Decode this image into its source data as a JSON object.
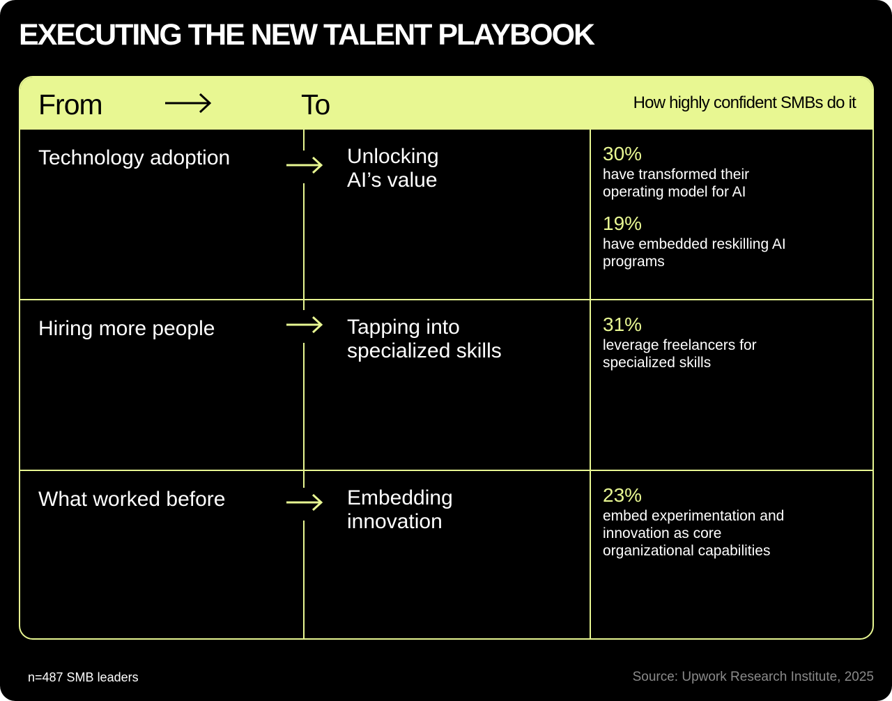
{
  "title": "EXECUTING THE NEW TALENT PLAYBOOK",
  "colors": {
    "accent": "#e8f792",
    "background": "#000000",
    "source_text": "#8a8a8a"
  },
  "header": {
    "from": "From",
    "to": "To",
    "right": "How highly confident SMBs do it",
    "arrow_icon": "arrow-right-icon"
  },
  "rows": [
    {
      "from": "Technology adoption",
      "to_line1": "Unlocking",
      "to_line2": "AI’s value",
      "stats": [
        {
          "pct": "30%",
          "desc": "have transformed their operating model for AI"
        },
        {
          "pct": "19%",
          "desc": "have embedded reskilling AI programs"
        }
      ]
    },
    {
      "from": "Hiring more people",
      "to_line1": "Tapping into",
      "to_line2": "specialized skills",
      "stats": [
        {
          "pct": "31%",
          "desc": "leverage freelancers for specialized skills"
        }
      ]
    },
    {
      "from": "What worked before",
      "to_line1": "Embedding",
      "to_line2": "innovation",
      "stats": [
        {
          "pct": "23%",
          "desc": "embed experimentation and innovation as core organizational capabilities"
        }
      ]
    }
  ],
  "footer": {
    "sample": "n=487 SMB leaders",
    "source": "Source: Upwork Research Institute, 2025"
  }
}
